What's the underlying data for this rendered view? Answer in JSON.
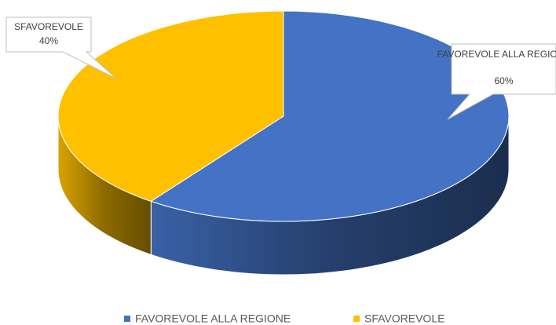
{
  "chart_data": {
    "type": "pie",
    "categories": [
      "FAVOREVOLE ALLA REGIONE",
      "SFAVOREVOLE"
    ],
    "values": [
      60,
      40
    ],
    "value_labels": [
      "60%",
      "40%"
    ],
    "colors": [
      "#4472c4",
      "#ffc000"
    ],
    "legend": "bottom"
  }
}
